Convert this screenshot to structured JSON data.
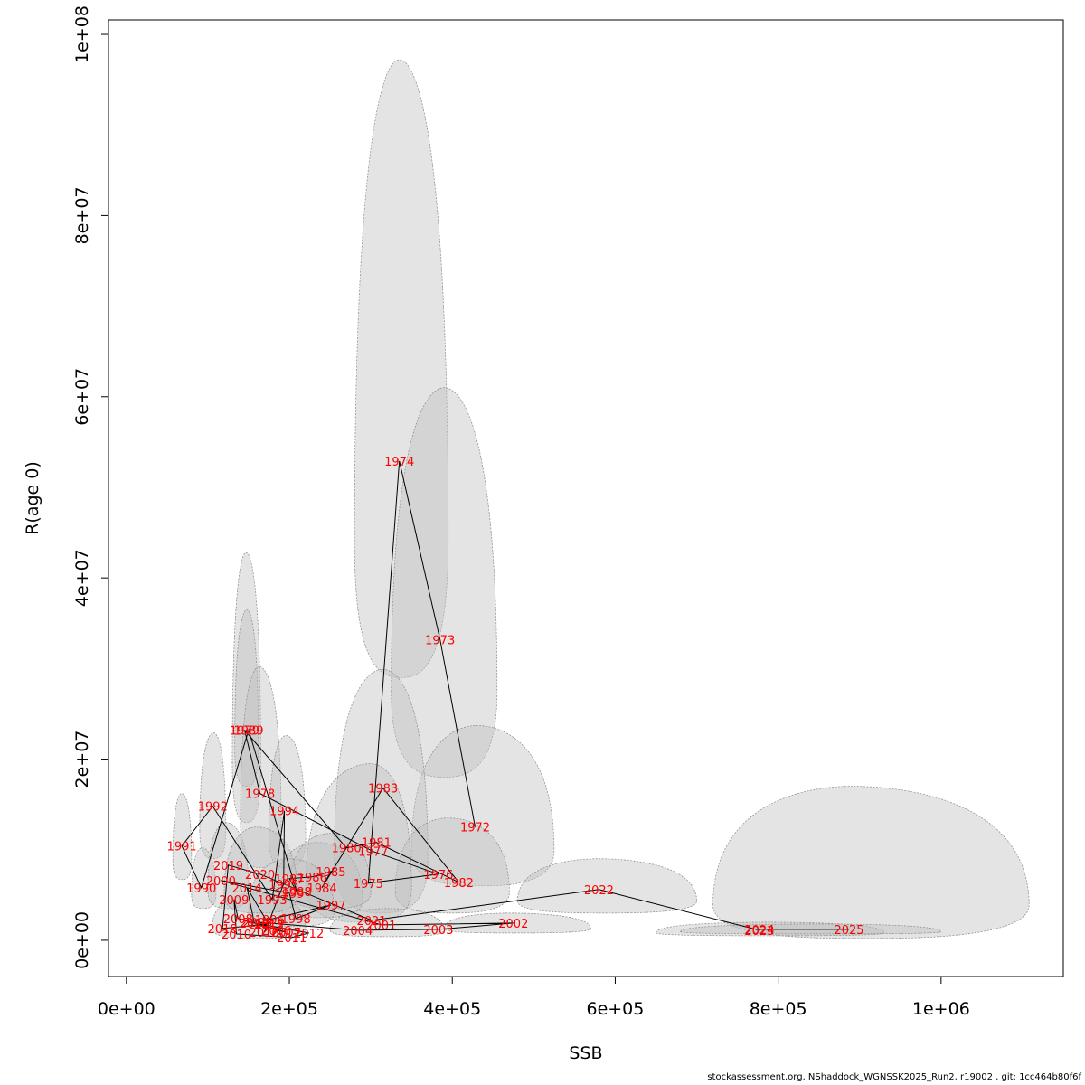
{
  "chart_data": {
    "type": "scatter",
    "xlabel": "SSB",
    "ylabel": "R(age 0)",
    "xlim": [
      -22000,
      1150000
    ],
    "ylim": [
      -4000000,
      101600000
    ],
    "x_ticks": [
      {
        "value": 0,
        "label": "0e+00"
      },
      {
        "value": 200000,
        "label": "2e+05"
      },
      {
        "value": 400000,
        "label": "4e+05"
      },
      {
        "value": 600000,
        "label": "6e+05"
      },
      {
        "value": 800000,
        "label": "8e+05"
      },
      {
        "value": 1000000,
        "label": "1e+06"
      }
    ],
    "y_ticks": [
      {
        "value": 0,
        "label": "0e+00"
      },
      {
        "value": 20000000,
        "label": "2e+07"
      },
      {
        "value": 40000000,
        "label": "4e+07"
      },
      {
        "value": 60000000,
        "label": "6e+07"
      },
      {
        "value": 80000000,
        "label": "8e+07"
      },
      {
        "value": 100000000,
        "label": "1e+08"
      }
    ],
    "grid": false,
    "line_color": "#000000",
    "label_color": "#ff0000",
    "ellipse_fill": "#bebebe",
    "points": [
      {
        "year": "1972",
        "ssb": 428000,
        "r": 12500000
      },
      {
        "year": "1973",
        "ssb": 385000,
        "r": 33200000
      },
      {
        "year": "1974",
        "ssb": 335000,
        "r": 52900000
      },
      {
        "year": "1975",
        "ssb": 297000,
        "r": 6300000
      },
      {
        "year": "1976",
        "ssb": 383000,
        "r": 7300000
      },
      {
        "year": "1977",
        "ssb": 303000,
        "r": 9800000
      },
      {
        "year": "1978",
        "ssb": 164000,
        "r": 16200000
      },
      {
        "year": "1979",
        "ssb": 145000,
        "r": 23200000
      },
      {
        "year": "1980",
        "ssb": 270000,
        "r": 10200000
      },
      {
        "year": "1981",
        "ssb": 307000,
        "r": 10800000
      },
      {
        "year": "1982",
        "ssb": 408000,
        "r": 6400000
      },
      {
        "year": "1983",
        "ssb": 315000,
        "r": 16800000
      },
      {
        "year": "1984",
        "ssb": 240000,
        "r": 5800000
      },
      {
        "year": "1985",
        "ssb": 251000,
        "r": 7600000
      },
      {
        "year": "1986",
        "ssb": 228000,
        "r": 7000000
      },
      {
        "year": "1987",
        "ssb": 200000,
        "r": 6800000
      },
      {
        "year": "1988",
        "ssb": 209000,
        "r": 5400000
      },
      {
        "year": "1989",
        "ssb": 150000,
        "r": 23200000
      },
      {
        "year": "1990",
        "ssb": 92000,
        "r": 5800000
      },
      {
        "year": "1991",
        "ssb": 68000,
        "r": 10400000
      },
      {
        "year": "1992",
        "ssb": 106000,
        "r": 14800000
      },
      {
        "year": "1993",
        "ssb": 179000,
        "r": 4500000
      },
      {
        "year": "1994",
        "ssb": 194000,
        "r": 14300000
      },
      {
        "year": "1995",
        "ssb": 193000,
        "r": 6200000
      },
      {
        "year": "1996",
        "ssb": 176000,
        "r": 2300000
      },
      {
        "year": "1997",
        "ssb": 251000,
        "r": 3900000
      },
      {
        "year": "1998",
        "ssb": 208000,
        "r": 2400000
      },
      {
        "year": "1999",
        "ssb": 200000,
        "r": 5200000
      },
      {
        "year": "2000",
        "ssb": 116000,
        "r": 6600000
      },
      {
        "year": "2001",
        "ssb": 313000,
        "r": 1700000
      },
      {
        "year": "2002",
        "ssb": 475000,
        "r": 1900000
      },
      {
        "year": "2003",
        "ssb": 383000,
        "r": 1200000
      },
      {
        "year": "2004",
        "ssb": 284000,
        "r": 1100000
      },
      {
        "year": "2005",
        "ssb": 161000,
        "r": 2000000
      },
      {
        "year": "2006",
        "ssb": 184000,
        "r": 1100000
      },
      {
        "year": "2007",
        "ssb": 196000,
        "r": 900000
      },
      {
        "year": "2008",
        "ssb": 137000,
        "r": 2400000
      },
      {
        "year": "2009",
        "ssb": 132000,
        "r": 4500000
      },
      {
        "year": "2010",
        "ssb": 135000,
        "r": 700000
      },
      {
        "year": "2011",
        "ssb": 203000,
        "r": 300000
      },
      {
        "year": "2012",
        "ssb": 224000,
        "r": 800000
      },
      {
        "year": "2013",
        "ssb": 157000,
        "r": 1900000
      },
      {
        "year": "2014",
        "ssb": 148000,
        "r": 5800000
      },
      {
        "year": "2015",
        "ssb": 175000,
        "r": 1700000
      },
      {
        "year": "2016",
        "ssb": 169000,
        "r": 900000
      },
      {
        "year": "2017",
        "ssb": 175000,
        "r": 1800000
      },
      {
        "year": "2018",
        "ssb": 118000,
        "r": 1300000
      },
      {
        "year": "2019",
        "ssb": 125000,
        "r": 8300000
      },
      {
        "year": "2020",
        "ssb": 164000,
        "r": 7300000
      },
      {
        "year": "2021",
        "ssb": 301000,
        "r": 2200000
      },
      {
        "year": "2022",
        "ssb": 580000,
        "r": 5600000
      },
      {
        "year": "2023",
        "ssb": 777000,
        "r": 1100000
      },
      {
        "year": "2024",
        "ssb": 777000,
        "r": 1200000
      },
      {
        "year": "2025",
        "ssb": 887000,
        "r": 1200000
      }
    ],
    "uncertainty_regions": [
      {
        "x_min": 280000,
        "x_max": 395000,
        "y_min": 29000000,
        "y_max": 97200000,
        "peak_x": 335000
      },
      {
        "x_min": 325000,
        "x_max": 455000,
        "y_min": 18000000,
        "y_max": 61000000,
        "peak_x": 390000
      },
      {
        "x_min": 350000,
        "x_max": 525000,
        "y_min": 6000000,
        "y_max": 23700000,
        "peak_x": 430000
      },
      {
        "x_min": 130000,
        "x_max": 165000,
        "y_min": 13000000,
        "y_max": 42800000,
        "peak_x": 147000
      },
      {
        "x_min": 133000,
        "x_max": 162000,
        "y_min": 17000000,
        "y_max": 36500000,
        "peak_x": 148000
      },
      {
        "x_min": 140000,
        "x_max": 190000,
        "y_min": 8000000,
        "y_max": 30200000,
        "peak_x": 163000
      },
      {
        "x_min": 255000,
        "x_max": 370000,
        "y_min": 3000000,
        "y_max": 29900000,
        "peak_x": 315000
      },
      {
        "x_min": 330000,
        "x_max": 470000,
        "y_min": 3000000,
        "y_max": 13500000,
        "peak_x": 395000
      },
      {
        "x_min": 220000,
        "x_max": 350000,
        "y_min": 2000000,
        "y_max": 19500000,
        "peak_x": 300000
      },
      {
        "x_min": 90000,
        "x_max": 122000,
        "y_min": 9000000,
        "y_max": 22900000,
        "peak_x": 107000
      },
      {
        "x_min": 175000,
        "x_max": 220000,
        "y_min": 8000000,
        "y_max": 22600000,
        "peak_x": 196000
      },
      {
        "x_min": 57000,
        "x_max": 80000,
        "y_min": 6700000,
        "y_max": 16200000,
        "peak_x": 68000
      },
      {
        "x_min": 80000,
        "x_max": 110000,
        "y_min": 3500000,
        "y_max": 10200000,
        "peak_x": 93000
      },
      {
        "x_min": 100000,
        "x_max": 150000,
        "y_min": 3500000,
        "y_max": 13000000,
        "peak_x": 122000
      },
      {
        "x_min": 180000,
        "x_max": 290000,
        "y_min": 2500000,
        "y_max": 10800000,
        "peak_x": 235000
      },
      {
        "x_min": 200000,
        "x_max": 300000,
        "y_min": 3500000,
        "y_max": 11800000,
        "peak_x": 250000
      },
      {
        "x_min": 150000,
        "x_max": 255000,
        "y_min": 1500000,
        "y_max": 9000000,
        "peak_x": 200000
      },
      {
        "x_min": 105000,
        "x_max": 220000,
        "y_min": 200000,
        "y_max": 5200000,
        "peak_x": 160000
      },
      {
        "x_min": 120000,
        "x_max": 210000,
        "y_min": 3000000,
        "y_max": 12500000,
        "peak_x": 160000
      },
      {
        "x_min": 480000,
        "x_max": 700000,
        "y_min": 3000000,
        "y_max": 9000000,
        "peak_x": 580000
      },
      {
        "x_min": 390000,
        "x_max": 570000,
        "y_min": 800000,
        "y_max": 3000000,
        "peak_x": 470000
      },
      {
        "x_min": 250000,
        "x_max": 390000,
        "y_min": 400000,
        "y_max": 3500000,
        "peak_x": 320000
      },
      {
        "x_min": 720000,
        "x_max": 1108000,
        "y_min": 200000,
        "y_max": 17000000,
        "peak_x": 890000
      },
      {
        "x_min": 650000,
        "x_max": 930000,
        "y_min": 500000,
        "y_max": 2000000,
        "peak_x": 790000
      },
      {
        "x_min": 680000,
        "x_max": 1000000,
        "y_min": 700000,
        "y_max": 1800000,
        "peak_x": 850000
      }
    ]
  },
  "footer_text": "stockassessment.org, NShaddock_WGNSSK2025_Run2, r19002 , git: 1cc464b80f6f"
}
